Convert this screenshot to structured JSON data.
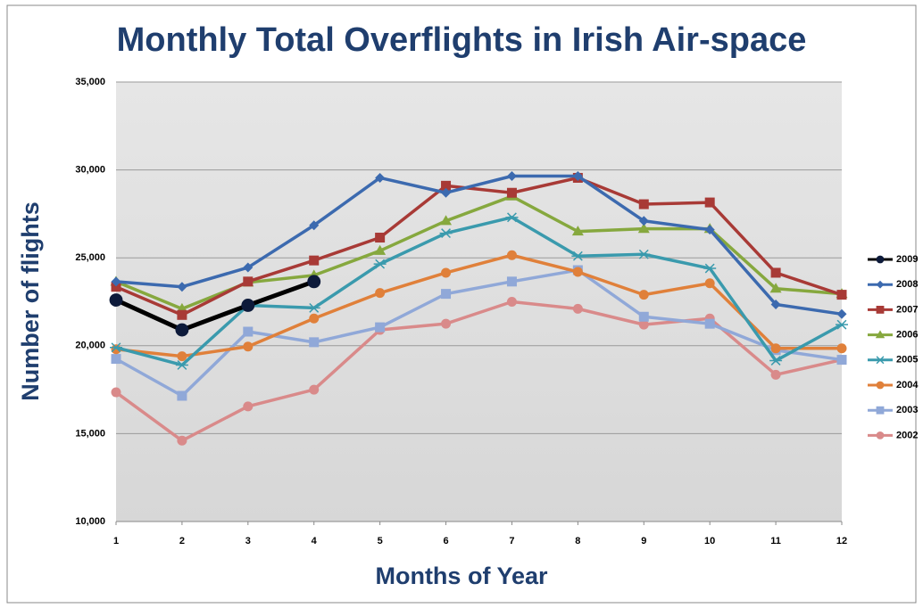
{
  "chart_data": {
    "type": "line",
    "title": "Monthly Total Overflights in Irish Air-space",
    "x_label": "Months of Year",
    "y_label": "Number of flights",
    "x": [
      1,
      2,
      3,
      4,
      5,
      6,
      7,
      8,
      9,
      10,
      11,
      12
    ],
    "xlim": [
      1,
      12
    ],
    "xticks": [
      1,
      2,
      3,
      4,
      5,
      6,
      7,
      8,
      9,
      10,
      11,
      12
    ],
    "ylim": [
      10000,
      35000
    ],
    "yticks": [
      {
        "value": 10000,
        "label": "10,000"
      },
      {
        "value": 15000,
        "label": "15,000"
      },
      {
        "value": 20000,
        "label": "20,000"
      },
      {
        "value": 25000,
        "label": "25,000"
      },
      {
        "value": 30000,
        "label": "30,000"
      },
      {
        "value": 35000,
        "label": "35,000"
      }
    ],
    "grid": true,
    "legend": "right",
    "series": [
      {
        "name": "2009",
        "color": "#000000",
        "marker": "circle",
        "values": [
          22600,
          20900,
          22300,
          23650,
          null,
          null,
          null,
          null,
          null,
          null,
          null,
          null
        ]
      },
      {
        "name": "2008",
        "color": "#3c6aaf",
        "marker": "diamond",
        "values": [
          23650,
          23350,
          24450,
          26850,
          29550,
          28700,
          29650,
          29650,
          27100,
          26600,
          22350,
          21800
        ]
      },
      {
        "name": "2007",
        "color": "#a83a36",
        "marker": "square",
        "values": [
          23350,
          21750,
          23650,
          24850,
          26150,
          29100,
          28700,
          29550,
          28050,
          28150,
          24150,
          22900
        ]
      },
      {
        "name": "2006",
        "color": "#86a83e",
        "marker": "triangle",
        "values": [
          23650,
          22100,
          23600,
          24000,
          25400,
          27100,
          28500,
          26500,
          26650,
          26650,
          23250,
          22950
        ]
      },
      {
        "name": "2005",
        "color": "#3a9aad",
        "marker": "star",
        "values": [
          19900,
          18900,
          22300,
          22150,
          24650,
          26400,
          27300,
          25100,
          25200,
          24400,
          19150,
          21200
        ]
      },
      {
        "name": "2004",
        "color": "#e0803a",
        "marker": "circle",
        "values": [
          19800,
          19400,
          19950,
          21550,
          23000,
          24150,
          25150,
          24200,
          22900,
          23550,
          19850,
          19850
        ]
      },
      {
        "name": "2003",
        "color": "#90a8d8",
        "marker": "square",
        "values": [
          19250,
          17150,
          20800,
          20200,
          21050,
          22950,
          23650,
          24300,
          21650,
          21250,
          19750,
          19200
        ]
      },
      {
        "name": "2002",
        "color": "#d98a8a",
        "marker": "circle",
        "values": [
          17350,
          14600,
          16550,
          17500,
          20900,
          21250,
          22500,
          22100,
          21200,
          21550,
          18350,
          19200
        ]
      }
    ]
  }
}
